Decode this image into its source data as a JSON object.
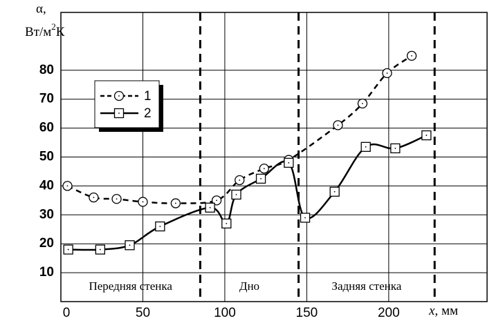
{
  "chart_data": {
    "type": "line",
    "y_label_1": "α,",
    "y_label_2": "Вт/м",
    "y_label_sup": "2",
    "y_label_3": "К",
    "x_label": "x,",
    "x_unit": "мм",
    "xlim": [
      0,
      260
    ],
    "xticks": [
      0,
      50,
      100,
      150,
      200
    ],
    "ylim": [
      0,
      100
    ],
    "yticks": [
      10,
      20,
      30,
      40,
      50,
      60,
      70,
      80
    ],
    "grid": true,
    "boundaries": [
      85,
      145,
      228
    ],
    "regions": [
      "Передняя стенка",
      "Дно",
      "Задняя стенка"
    ],
    "series": [
      {
        "name": "1",
        "marker": "circle",
        "dash": true,
        "color": "#000",
        "x": [
          4,
          20,
          34,
          50,
          70,
          95,
          109,
          124,
          139,
          169,
          184,
          199,
          214
        ],
        "values": [
          40,
          36,
          35.5,
          34.5,
          34,
          35,
          42,
          46,
          49,
          61,
          68.5,
          79,
          85
        ]
      },
      {
        "name": "2",
        "marker": "square",
        "dash": false,
        "color": "#000",
        "x": [
          4.5,
          24,
          42,
          60.5,
          91,
          101,
          107,
          122,
          139,
          149,
          167,
          186,
          204,
          223
        ],
        "values": [
          18,
          18,
          19.5,
          26,
          32.5,
          27,
          37,
          42.5,
          48,
          29,
          38,
          53.5,
          53,
          57.5
        ]
      }
    ]
  }
}
